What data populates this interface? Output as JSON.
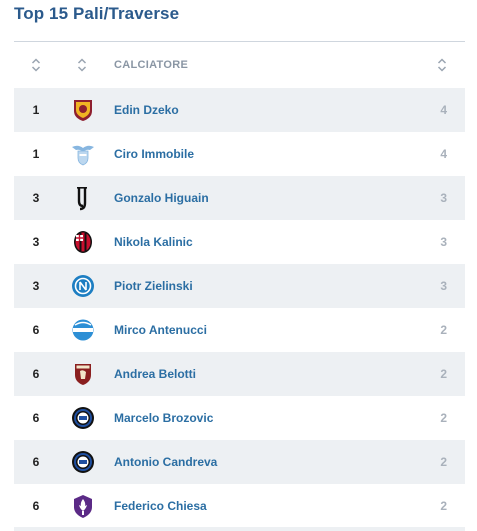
{
  "title": "Top 15 Pali/Traverse",
  "header": {
    "player_col": "CALCIATORE"
  },
  "rows": [
    {
      "rank": "1",
      "player": "Edin Dzeko",
      "club_icon": "roma-crest-icon",
      "value": "4"
    },
    {
      "rank": "1",
      "player": "Ciro Immobile",
      "club_icon": "lazio-crest-icon",
      "value": "4"
    },
    {
      "rank": "3",
      "player": "Gonzalo Higuain",
      "club_icon": "juventus-crest-icon",
      "value": "3"
    },
    {
      "rank": "3",
      "player": "Nikola Kalinic",
      "club_icon": "milan-crest-icon",
      "value": "3"
    },
    {
      "rank": "3",
      "player": "Piotr Zielinski",
      "club_icon": "napoli-crest-icon",
      "value": "3"
    },
    {
      "rank": "6",
      "player": "Mirco Antenucci",
      "club_icon": "spal-crest-icon",
      "value": "2"
    },
    {
      "rank": "6",
      "player": "Andrea Belotti",
      "club_icon": "torino-crest-icon",
      "value": "2"
    },
    {
      "rank": "6",
      "player": "Marcelo Brozovic",
      "club_icon": "inter-crest-icon",
      "value": "2"
    },
    {
      "rank": "6",
      "player": "Antonio Candreva",
      "club_icon": "inter-crest-icon",
      "value": "2"
    },
    {
      "rank": "6",
      "player": "Federico Chiesa",
      "club_icon": "fiorentina-crest-icon",
      "value": "2"
    }
  ],
  "colors": {
    "title": "#2b5a8c",
    "player_link": "#2b6ea3",
    "row_alt": "#edf0f3",
    "value": "#a9b1bb"
  }
}
